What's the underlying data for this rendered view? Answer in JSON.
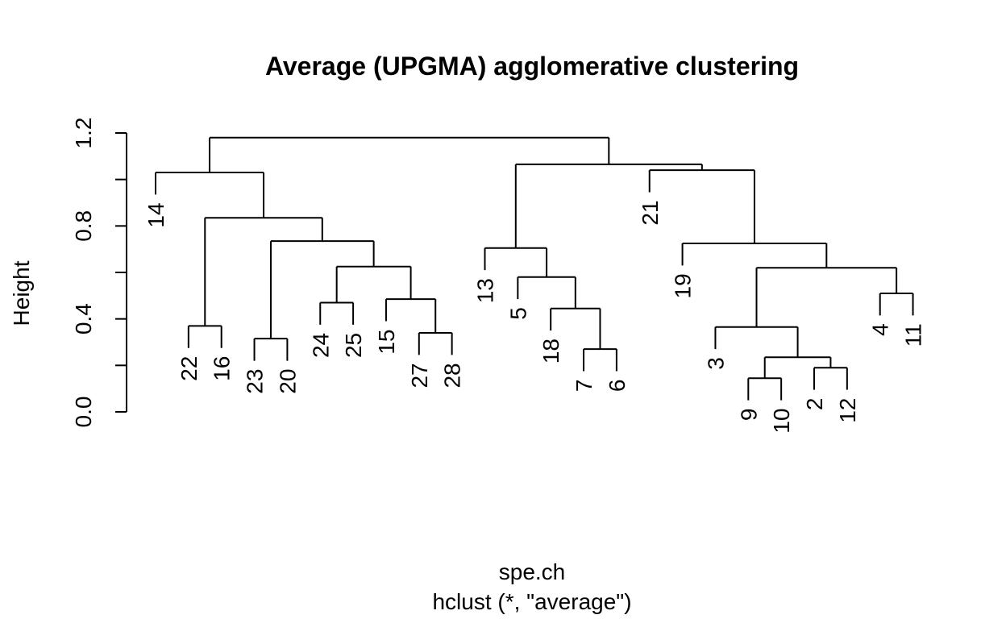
{
  "chart_data": {
    "type": "dendrogram",
    "title": "Average (UPGMA) agglomerative clustering",
    "xlabel": "spe.ch",
    "sub": "hclust (*, \"average\")",
    "ylabel": "Height",
    "ylim": [
      0,
      1.2
    ],
    "yticks": [
      "0.0",
      "0.4",
      "0.8",
      "1.2"
    ],
    "yticks_minor": [
      0.2,
      0.6,
      1.0
    ],
    "leaf_order": [
      "14",
      "22",
      "16",
      "23",
      "20",
      "24",
      "25",
      "15",
      "27",
      "28",
      "13",
      "5",
      "18",
      "7",
      "6",
      "21",
      "19",
      "3",
      "9",
      "10",
      "2",
      "12",
      "4",
      "11"
    ],
    "merges": [
      {
        "a": "L22",
        "b": "L16",
        "height": 0.37
      },
      {
        "a": "L23",
        "b": "L20",
        "height": 0.315
      },
      {
        "a": "L24",
        "b": "L25",
        "height": 0.47
      },
      {
        "a": "L27",
        "b": "L28",
        "height": 0.34
      },
      {
        "a": "L15",
        "b": "N4",
        "height": 0.485
      },
      {
        "a": "N3",
        "b": "N5",
        "height": 0.625
      },
      {
        "a": "N2",
        "b": "N6",
        "height": 0.735
      },
      {
        "a": "N1",
        "b": "N7",
        "height": 0.835
      },
      {
        "a": "L14",
        "b": "N8",
        "height": 1.03
      },
      {
        "a": "L7",
        "b": "L6",
        "height": 0.27
      },
      {
        "a": "L18",
        "b": "N10",
        "height": 0.445
      },
      {
        "a": "L5",
        "b": "N11",
        "height": 0.58
      },
      {
        "a": "L13",
        "b": "N12",
        "height": 0.705
      },
      {
        "a": "L9",
        "b": "L10",
        "height": 0.145
      },
      {
        "a": "L2",
        "b": "L12",
        "height": 0.19
      },
      {
        "a": "N14",
        "b": "N15",
        "height": 0.235
      },
      {
        "a": "L3",
        "b": "N16",
        "height": 0.365
      },
      {
        "a": "L4",
        "b": "L11",
        "height": 0.51
      },
      {
        "a": "N17",
        "b": "N18",
        "height": 0.62
      },
      {
        "a": "L19",
        "b": "N19",
        "height": 0.725
      },
      {
        "a": "L21",
        "b": "N20",
        "height": 1.04
      },
      {
        "a": "N13",
        "b": "N21",
        "height": 1.065
      },
      {
        "a": "N9",
        "b": "N22",
        "height": 1.18
      }
    ]
  }
}
